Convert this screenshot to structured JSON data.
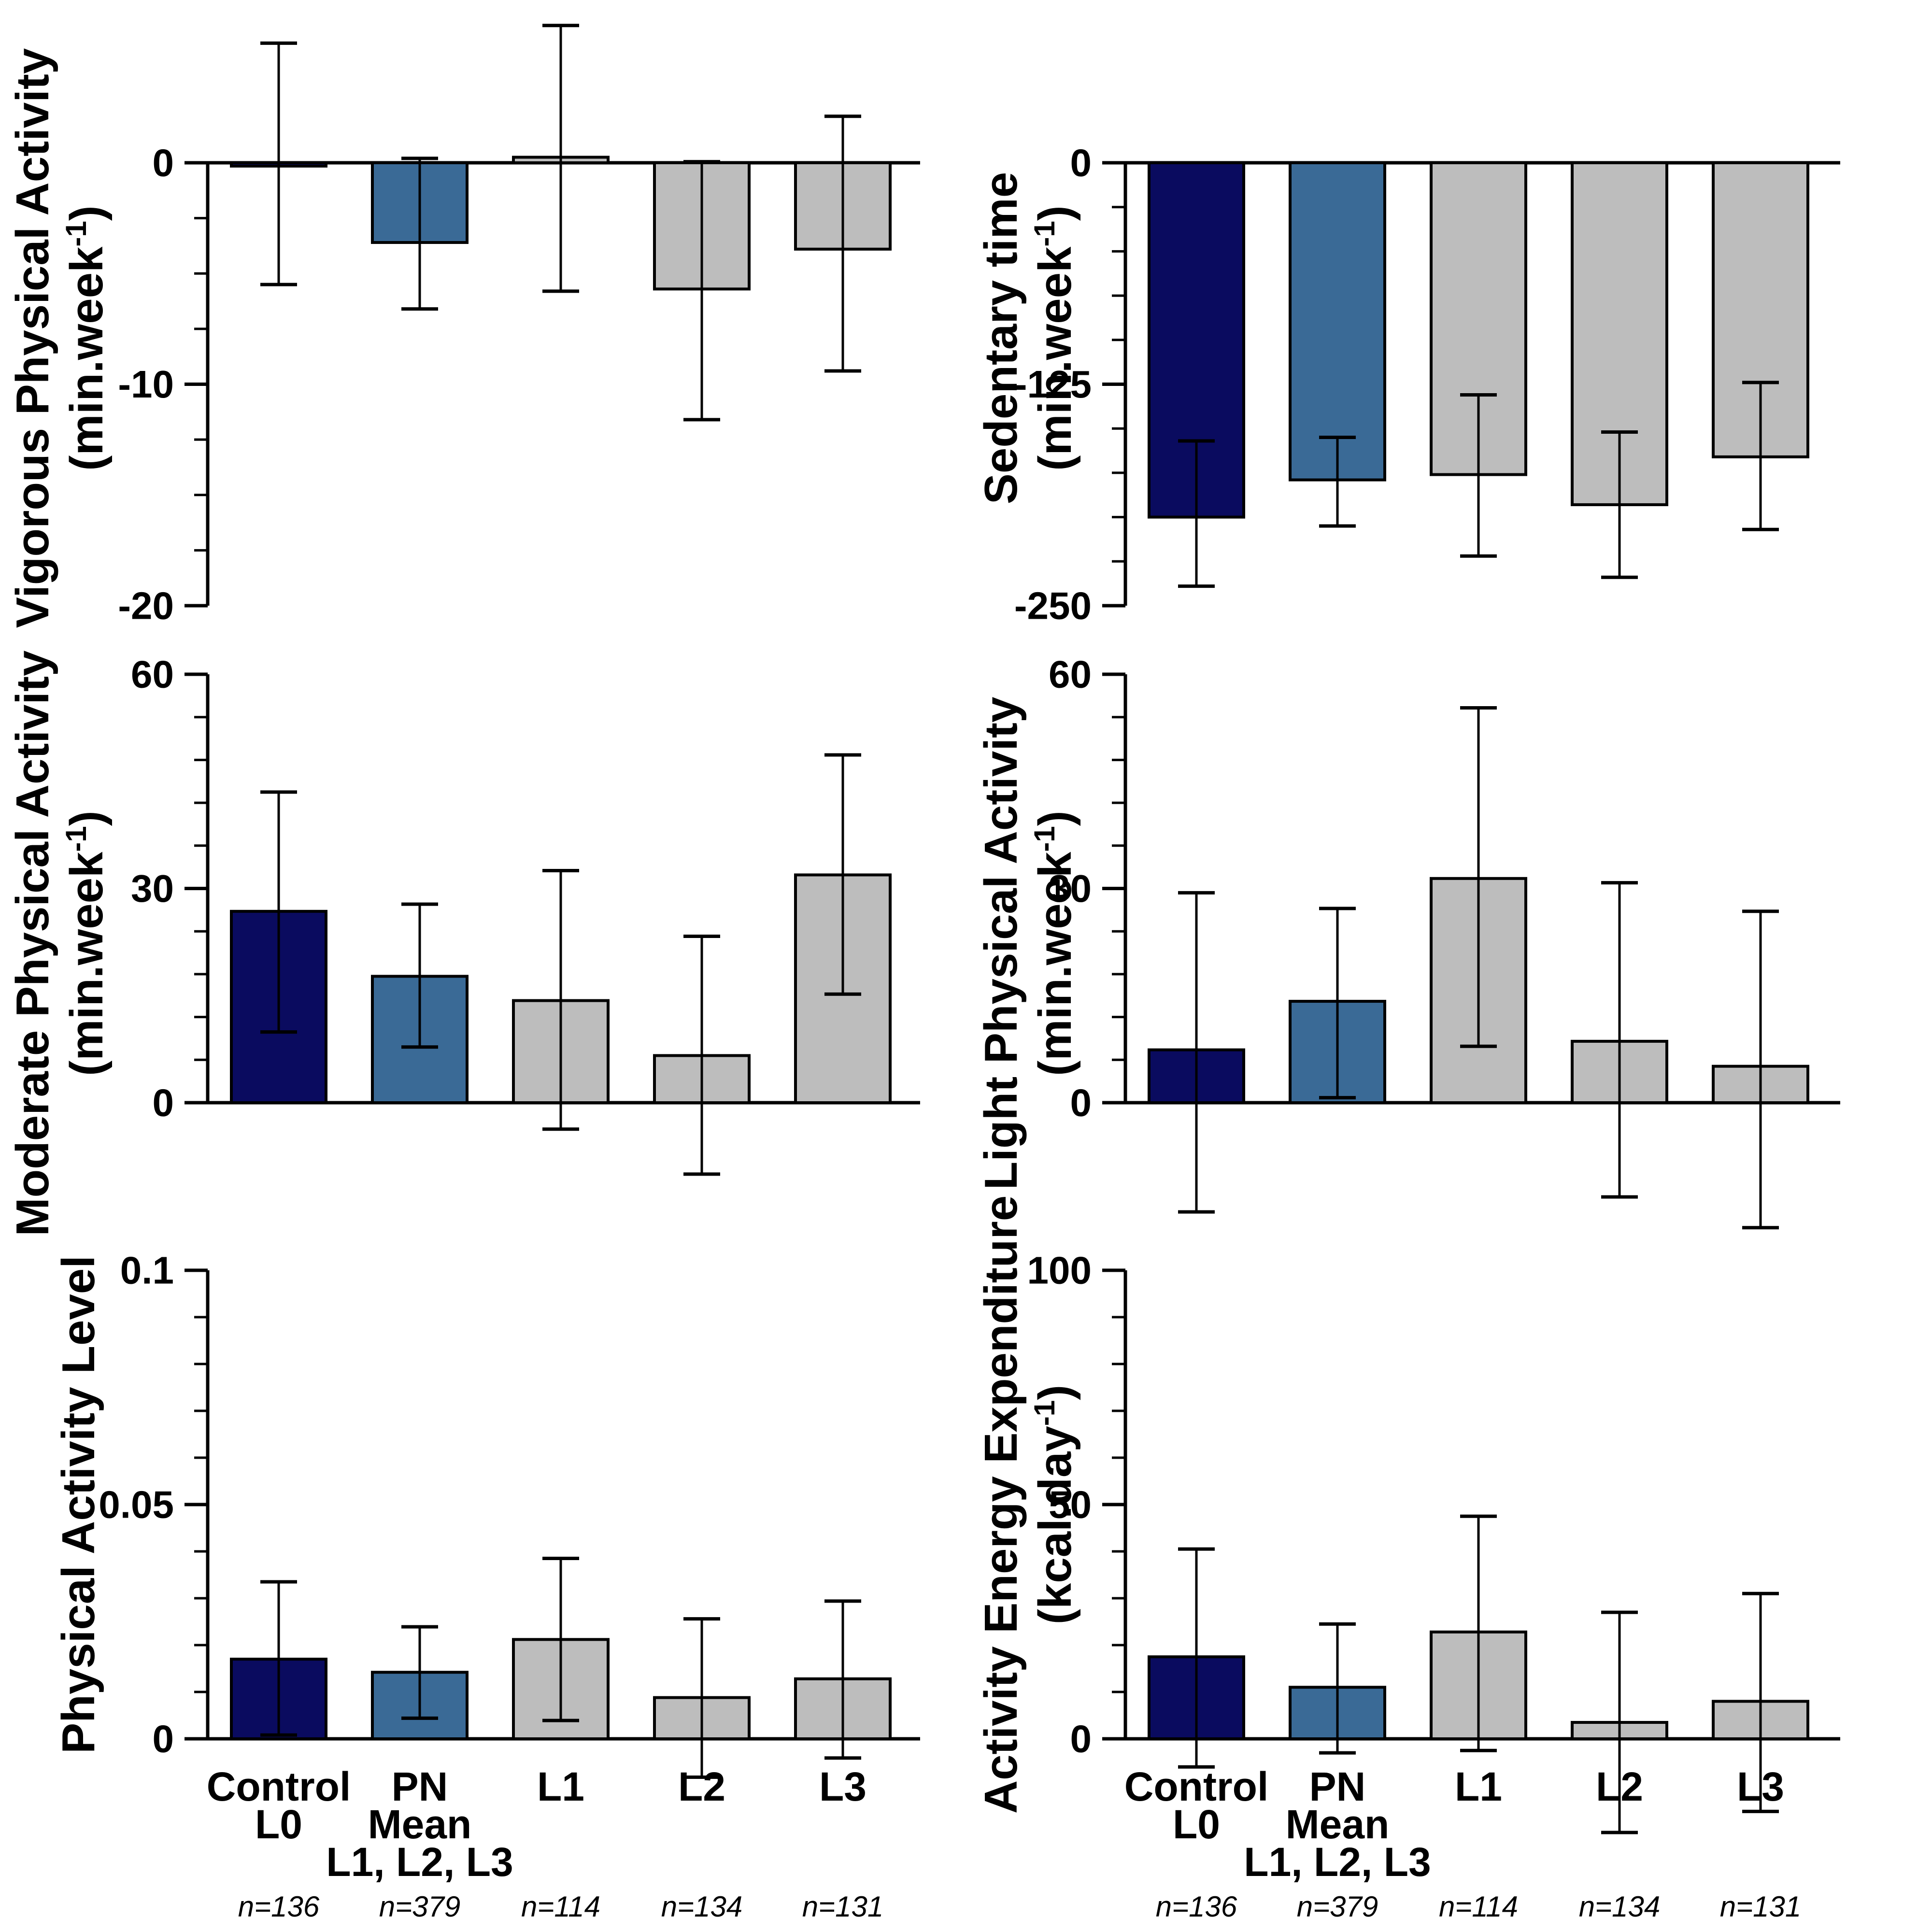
{
  "colors": {
    "navy": "#0a0b5f",
    "steel_blue": "#3a6a96",
    "gray": "#bdbdbd",
    "axis": "#000000",
    "background": "#ffffff"
  },
  "x_axis": {
    "categories": [
      "Control L0",
      "PN Mean L1, L2, L3",
      "L1",
      "L2",
      "L3"
    ],
    "groups": [
      {
        "lines": [
          "Control",
          "L0"
        ],
        "n": "n=136"
      },
      {
        "lines": [
          "PN",
          "Mean",
          "L1, L2, L3"
        ],
        "n": "n=379"
      },
      {
        "lines": [
          "L1"
        ],
        "n": "n=114"
      },
      {
        "lines": [
          "L2"
        ],
        "n": "n=134"
      },
      {
        "lines": [
          "L3"
        ],
        "n": "n=131"
      }
    ],
    "n_labels": [
      "n=136",
      "n=379",
      "n=114",
      "n=134",
      "n=131"
    ]
  },
  "chart_data": [
    {
      "id": "vigorous-physical-activity",
      "type": "bar",
      "title": "Vigorous Physical Activity",
      "unit": {
        "pre": "(min.week",
        "sup": "-1",
        "post": ")"
      },
      "ymin": -20,
      "ymax": 0,
      "yticks": [
        {
          "v": 0,
          "label": "0"
        },
        {
          "v": -10,
          "label": "-10"
        },
        {
          "v": -20,
          "label": "-20"
        }
      ],
      "minor_step": 2.5,
      "categories": [
        "Control L0",
        "PN Mean L1, L2, L3",
        "L1",
        "L2",
        "L3"
      ],
      "values": [
        -0.15,
        -3.6,
        0.25,
        -5.7,
        -3.9
      ],
      "err_high": [
        5.4,
        0.2,
        6.2,
        0.05,
        2.1
      ],
      "err_low": [
        -5.5,
        -6.6,
        -5.8,
        -11.6,
        -9.4
      ],
      "bar_colors": [
        "navy",
        "steel_blue",
        "gray",
        "gray",
        "gray"
      ]
    },
    {
      "id": "sedentary-time",
      "type": "bar",
      "title": "Sedentary time",
      "unit": {
        "pre": "(min.week",
        "sup": "-1",
        "post": ")"
      },
      "ymin": -250,
      "ymax": 0,
      "yticks": [
        {
          "v": 0,
          "label": "0"
        },
        {
          "v": -125,
          "label": "-125"
        },
        {
          "v": -250,
          "label": "-250"
        }
      ],
      "minor_step": 25,
      "categories": [
        "Control L0",
        "PN Mean L1, L2, L3",
        "L1",
        "L2",
        "L3"
      ],
      "values": [
        -200,
        -179,
        -176,
        -193,
        -166
      ],
      "err_high": [
        -157,
        -155,
        -131,
        -152,
        -124
      ],
      "err_low": [
        -239,
        -205,
        -222,
        -234,
        -207
      ],
      "bar_colors": [
        "navy",
        "steel_blue",
        "gray",
        "gray",
        "gray"
      ]
    },
    {
      "id": "moderate-physical-activity",
      "type": "bar",
      "title": "Moderate Physical Activity",
      "unit": {
        "pre": "(min.week",
        "sup": "-1",
        "post": ")"
      },
      "ymin": 0,
      "ymax": 60,
      "yticks": [
        {
          "v": 60,
          "label": "60"
        },
        {
          "v": 30,
          "label": "30"
        },
        {
          "v": 0,
          "label": "0"
        }
      ],
      "minor_step": 6,
      "categories": [
        "Control L0",
        "PN Mean L1, L2, L3",
        "L1",
        "L2",
        "L3"
      ],
      "values": [
        26.8,
        17.7,
        14.3,
        6.6,
        31.9
      ],
      "err_high": [
        43.5,
        27.8,
        32.5,
        23.3,
        48.7
      ],
      "err_low": [
        9.9,
        7.8,
        -3.7,
        -10,
        15.2
      ],
      "bar_colors": [
        "navy",
        "steel_blue",
        "gray",
        "gray",
        "gray"
      ]
    },
    {
      "id": "light-physical-activity",
      "type": "bar",
      "title": "Light Physical Activity",
      "unit": {
        "pre": "(min.week",
        "sup": "-1",
        "post": ")"
      },
      "ymin": 0,
      "ymax": 60,
      "yticks": [
        {
          "v": 60,
          "label": "60"
        },
        {
          "v": 30,
          "label": "30"
        },
        {
          "v": 0,
          "label": "0"
        }
      ],
      "minor_step": 6,
      "categories": [
        "Control L0",
        "PN Mean L1, L2, L3",
        "L1",
        "L2",
        "L3"
      ],
      "values": [
        7.4,
        14.2,
        31.4,
        8.6,
        5.1
      ],
      "err_high": [
        29.4,
        27.2,
        55.3,
        30.8,
        26.8
      ],
      "err_low": [
        -15.3,
        0.7,
        7.9,
        -13.2,
        -17.5
      ],
      "bar_colors": [
        "navy",
        "steel_blue",
        "gray",
        "gray",
        "gray"
      ]
    },
    {
      "id": "physical-activity-level",
      "type": "bar",
      "title": "Physical Activity Level",
      "unit": null,
      "ymin": 0,
      "ymax": 0.1,
      "yticks": [
        {
          "v": 0.1,
          "label": "0.1"
        },
        {
          "v": 0.05,
          "label": "0.05"
        },
        {
          "v": 0,
          "label": "0"
        }
      ],
      "minor_step": 0.01,
      "categories": [
        "Control L0",
        "PN Mean L1, L2, L3",
        "L1",
        "L2",
        "L3"
      ],
      "values": [
        0.017,
        0.0142,
        0.0212,
        0.0088,
        0.0128
      ],
      "err_high": [
        0.0335,
        0.0239,
        0.0385,
        0.0256,
        0.0294
      ],
      "err_low": [
        0.0008,
        0.0044,
        0.0039,
        -0.0082,
        -0.0041
      ],
      "bar_colors": [
        "navy",
        "steel_blue",
        "gray",
        "gray",
        "gray"
      ]
    },
    {
      "id": "activity-energy-expenditure",
      "type": "bar",
      "title": "Activity Energy Expenditure",
      "unit": {
        "pre": "(kcal.day",
        "sup": "-1",
        "post": ")"
      },
      "ymin": 0,
      "ymax": 100,
      "yticks": [
        {
          "v": 100,
          "label": "100"
        },
        {
          "v": 50,
          "label": "50"
        },
        {
          "v": 0,
          "label": "0"
        }
      ],
      "minor_step": 10,
      "categories": [
        "Control L0",
        "PN Mean L1, L2, L3",
        "L1",
        "L2",
        "L3"
      ],
      "values": [
        17.5,
        11,
        22.8,
        3.5,
        8
      ],
      "err_high": [
        40.5,
        24.5,
        47.5,
        27,
        31
      ],
      "err_low": [
        -6,
        -3,
        -2.5,
        -20,
        -15.5
      ],
      "bar_colors": [
        "navy",
        "steel_blue",
        "gray",
        "gray",
        "gray"
      ]
    }
  ]
}
